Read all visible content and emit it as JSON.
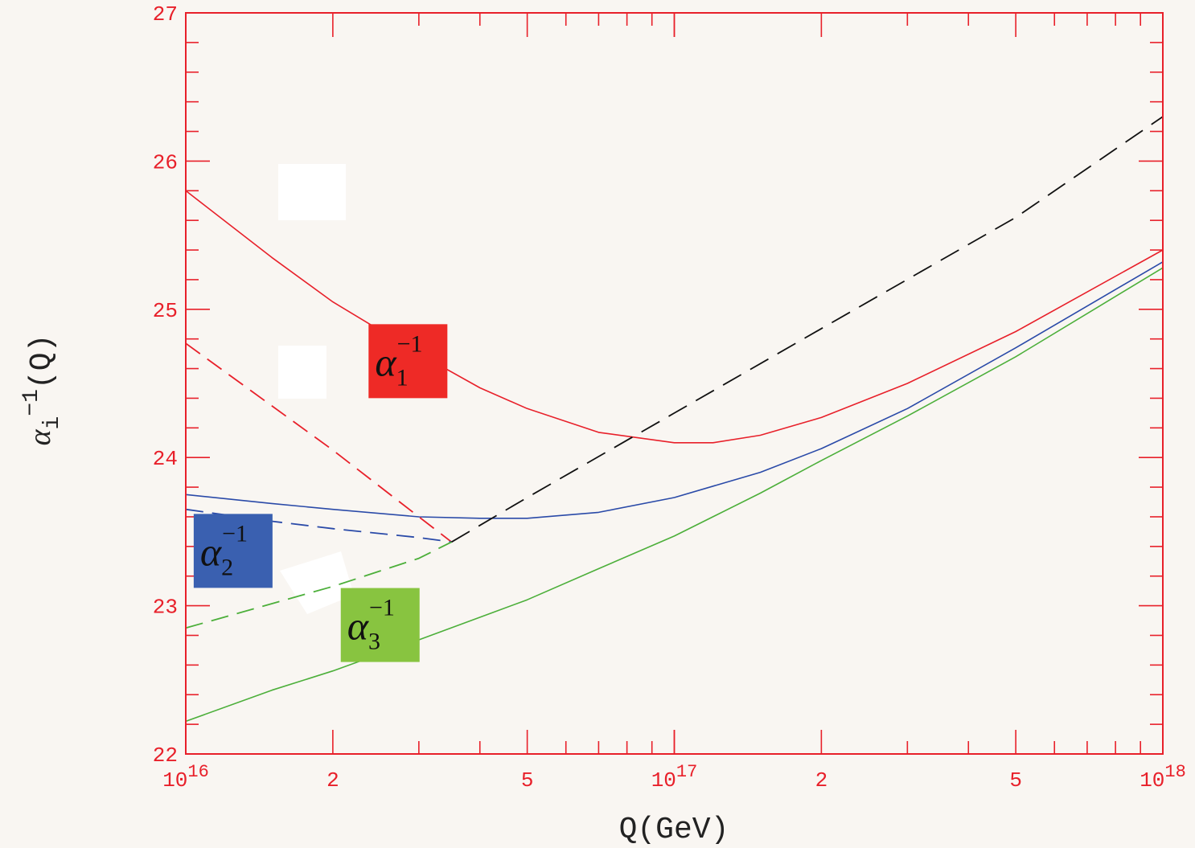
{
  "chart_data": {
    "type": "line",
    "xlabel": "Q(GeV)",
    "ylabel": {
      "symbol": "α",
      "sub": "i",
      "sup": "−1",
      "rest": "(Q)"
    },
    "xscale": "log",
    "xlim": [
      1e+16,
      1e+18
    ],
    "ylim": [
      22,
      27
    ],
    "x_ticks": [
      {
        "value": 1e+16,
        "base": "10",
        "exp": "16"
      },
      {
        "value": 2e+16,
        "label": "2"
      },
      {
        "value": 5e+16,
        "label": "5"
      },
      {
        "value": 1e+17,
        "base": "10",
        "exp": "17"
      },
      {
        "value": 2e+17,
        "label": "2"
      },
      {
        "value": 5e+17,
        "label": "5"
      },
      {
        "value": 1e+18,
        "base": "10",
        "exp": "18"
      }
    ],
    "y_ticks": [
      "22",
      "23",
      "24",
      "25",
      "26",
      "27"
    ],
    "grid": false,
    "colors": {
      "alpha1": "#e8202a",
      "alpha2": "#2a4aa8",
      "alpha3": "#4caf3a",
      "extrapolation": "#111111",
      "axis": "#e8202a"
    },
    "series": [
      {
        "id": "alpha1",
        "style": "solid",
        "x": [
          1e+16,
          1.5e+16,
          2e+16,
          3e+16,
          4e+16,
          5e+16,
          7e+16,
          1e+17,
          1.2e+17,
          1.5e+17,
          2e+17,
          3e+17,
          5e+17,
          1e+18
        ],
        "y": [
          25.8,
          25.35,
          25.05,
          24.7,
          24.47,
          24.33,
          24.17,
          24.1,
          24.1,
          24.15,
          24.27,
          24.5,
          24.85,
          25.4
        ]
      },
      {
        "id": "alpha2",
        "style": "solid",
        "x": [
          1e+16,
          1.5e+16,
          2e+16,
          3e+16,
          4e+16,
          5e+16,
          7e+16,
          1e+17,
          1.5e+17,
          2e+17,
          3e+17,
          5e+17,
          1e+18
        ],
        "y": [
          23.75,
          23.69,
          23.65,
          23.6,
          23.59,
          23.59,
          23.63,
          23.73,
          23.9,
          24.06,
          24.33,
          24.74,
          25.32
        ]
      },
      {
        "id": "alpha3",
        "style": "solid",
        "x": [
          1e+16,
          1.5e+16,
          2e+16,
          3e+16,
          5e+16,
          7e+16,
          1e+17,
          1.5e+17,
          2e+17,
          3e+17,
          5e+17,
          1e+18
        ],
        "y": [
          22.22,
          22.43,
          22.56,
          22.77,
          23.04,
          23.25,
          23.47,
          23.76,
          23.98,
          24.28,
          24.68,
          25.28
        ]
      },
      {
        "id": "alpha1-dashed",
        "style": "dashed",
        "x": [
          1e+16,
          2e+16,
          3e+16,
          3.5e+16
        ],
        "y": [
          24.77,
          24.05,
          23.6,
          23.43
        ]
      },
      {
        "id": "alpha2-dashed",
        "style": "dashed",
        "x": [
          1e+16,
          1.5e+16,
          2e+16,
          3e+16,
          3.5e+16
        ],
        "y": [
          23.65,
          23.57,
          23.52,
          23.46,
          23.43
        ]
      },
      {
        "id": "alpha3-dashed",
        "style": "dashed",
        "x": [
          1e+16,
          2e+16,
          3e+16,
          3.5e+16
        ],
        "y": [
          22.85,
          23.13,
          23.32,
          23.43
        ]
      },
      {
        "id": "unified-dashed",
        "style": "dashed",
        "x": [
          3.5e+16,
          5e+16,
          1e+17,
          2e+17,
          5e+17,
          1e+18
        ],
        "y": [
          23.43,
          23.73,
          24.3,
          24.87,
          25.62,
          26.3
        ]
      }
    ],
    "annotations": [
      {
        "id": "alpha1-box",
        "symbol": "α",
        "sub": "1",
        "sup": "−1",
        "x": 2.85e+16,
        "y": 24.65,
        "color": "#ee2a26"
      },
      {
        "id": "alpha2-box",
        "symbol": "α",
        "sub": "2",
        "sup": "−1",
        "x": 1.25e+16,
        "y": 23.37,
        "color": "#3a60b0"
      },
      {
        "id": "alpha3-box",
        "symbol": "α",
        "sub": "3",
        "sup": "−1",
        "x": 2.5e+16,
        "y": 22.87,
        "color": "#88c440"
      }
    ]
  }
}
